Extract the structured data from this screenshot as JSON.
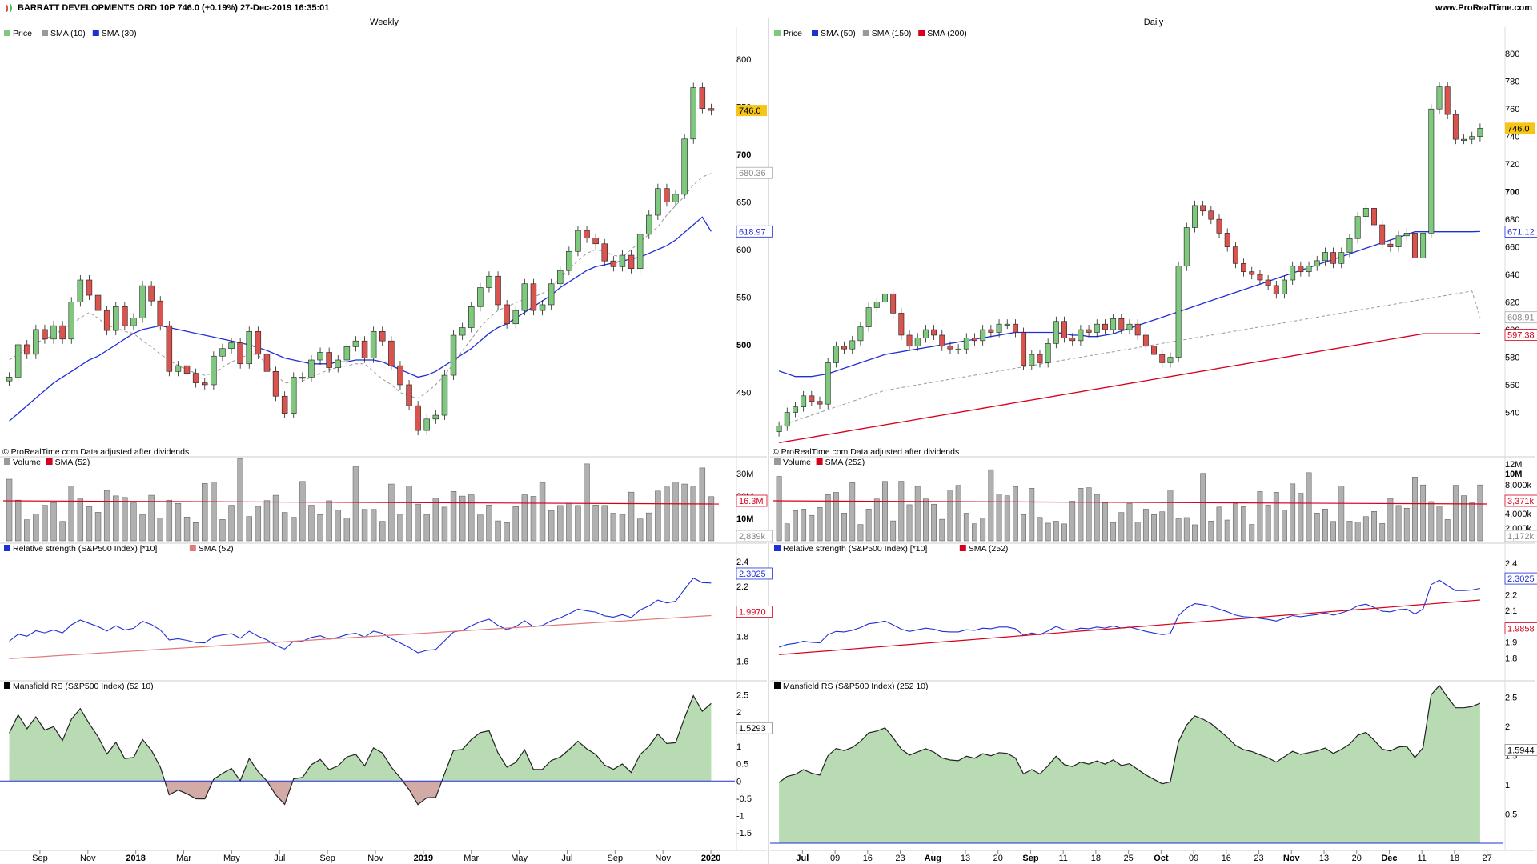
{
  "header": {
    "title": "BARRATT DEVELOPMENTS ORD 10P 746.0 (+0.19%) 27-Dec-2019 16:35:01",
    "site": "www.ProRealTime.com"
  },
  "colors": {
    "up": "#7fc97f",
    "down": "#d9534f",
    "sma_fast": "#999999",
    "sma_blue": "#1f2fd6",
    "sma_red": "#d6001c",
    "mansfield_pos": "#b8dbb4",
    "mansfield_neg": "#d2aaa6",
    "last": "#f5c518"
  },
  "panels": [
    {
      "timeframe": "Weekly",
      "price_legend": [
        "Price",
        "SMA (10)",
        "SMA (30)"
      ],
      "credit": "© ProRealTime.com  Data adjusted after dividends",
      "price_ticks": [
        "800",
        "750",
        "700",
        "650",
        "600",
        "550",
        "500",
        "450"
      ],
      "price_min": 400,
      "price_max": 820,
      "last_price": "746.0",
      "sma_fast_label": "680.36",
      "sma_slow_label": "618.97",
      "volume_legend": [
        "Volume",
        "SMA (52)"
      ],
      "volume_ticks": [
        "30M",
        "20M",
        "10M"
      ],
      "volume_labels": [
        "16.3M",
        "2,839k"
      ],
      "rs_legend": [
        "Relative strength (S&P500 Index) [*10]",
        "SMA (52)"
      ],
      "rs_ticks": [
        "2.4",
        "2.2",
        "2",
        "1.8",
        "1.6"
      ],
      "rs_labels": [
        "2.3025",
        "1.9970"
      ],
      "mansfield_legend": [
        "Mansfield RS (S&P500 Index) (52 10)"
      ],
      "mansfield_ticks": [
        "2.5",
        "2",
        "1.5",
        "1",
        "0.5",
        "0",
        "-0.5",
        "-1",
        "-1.5"
      ],
      "mansfield_label": "1.5293",
      "x_labels": [
        "Sep",
        "Nov",
        "2018",
        "Mar",
        "May",
        "Jul",
        "Sep",
        "Nov",
        "2019",
        "Mar",
        "May",
        "Jul",
        "Sep",
        "Nov",
        "2020"
      ]
    },
    {
      "timeframe": "Daily",
      "price_legend": [
        "Price",
        "SMA (50)",
        "SMA (150)",
        "SMA (200)"
      ],
      "credit": "© ProRealTime.com  Data adjusted after dividends",
      "price_ticks": [
        "800",
        "780",
        "760",
        "740",
        "720",
        "700",
        "680",
        "660",
        "640",
        "620",
        "600",
        "580",
        "560",
        "540"
      ],
      "price_min": 520,
      "price_max": 810,
      "last_price": "746.0",
      "sma50_label": "671.12",
      "sma150_label": "608.91",
      "sma200_label": "597.38",
      "volume_legend": [
        "Volume",
        "SMA (252)"
      ],
      "volume_ticks": [
        "12M",
        "10M",
        "8,000k",
        "6,000k",
        "4,000k",
        "2,000k"
      ],
      "volume_labels": [
        "3,371k",
        "1,172k"
      ],
      "rs_legend": [
        "Relative strength (S&P500 Index) [*10]",
        "SMA (252)"
      ],
      "rs_ticks": [
        "2.4",
        "2.3",
        "2.2",
        "2.1",
        "2",
        "1.9",
        "1.8"
      ],
      "rs_labels": [
        "2.3025",
        "1.9858"
      ],
      "mansfield_legend": [
        "Mansfield RS (S&P500 Index) (252 10)"
      ],
      "mansfield_ticks": [
        "2.5",
        "2",
        "1.5",
        "1",
        "0.5"
      ],
      "mansfield_label": "1.5944",
      "x_labels": [
        "Jul",
        "09",
        "16",
        "23",
        "Aug",
        "13",
        "20",
        "Sep",
        "11",
        "18",
        "25",
        "Oct",
        "09",
        "16",
        "23",
        "Nov",
        "13",
        "20",
        "Dec",
        "11",
        "18",
        "27"
      ]
    }
  ],
  "chart_data": [
    {
      "type": "candlestick",
      "title": "Weekly",
      "series": [
        {
          "name": "Price",
          "values": [
            466,
            500,
            490,
            516,
            506,
            520,
            506,
            545,
            568,
            552,
            536,
            515,
            540,
            520,
            528,
            562,
            546,
            520,
            472,
            478,
            470,
            460,
            458,
            488,
            496,
            502,
            480,
            514,
            490,
            472,
            446,
            428,
            466,
            466,
            484,
            492,
            476,
            484,
            498,
            504,
            486,
            514,
            504,
            478,
            458,
            436,
            410,
            422,
            426,
            468,
            510,
            518,
            540,
            560,
            572,
            542,
            522,
            536,
            564,
            536,
            542,
            564,
            578,
            598,
            620,
            612,
            606,
            588,
            582,
            594,
            580,
            616,
            636,
            664,
            650,
            658,
            716,
            770,
            748,
            746
          ]
        },
        {
          "name": "SMA (10)",
          "values": [
            484,
            490,
            496,
            502,
            506,
            510,
            516,
            522,
            528,
            534,
            528,
            520,
            518,
            514,
            512,
            504,
            498,
            490,
            484,
            478,
            474,
            470,
            468,
            470,
            476,
            482,
            486,
            490,
            490,
            478,
            468,
            460,
            460,
            462,
            466,
            470,
            474,
            476,
            478,
            480,
            480,
            472,
            464,
            458,
            450,
            446,
            444,
            450,
            458,
            468,
            480,
            494,
            506,
            518,
            528,
            536,
            540,
            544,
            548,
            550,
            554,
            560,
            570,
            580,
            588,
            596,
            600,
            598,
            594,
            592,
            600,
            608,
            616,
            624,
            636,
            646,
            656,
            668,
            676,
            680
          ]
        },
        {
          "name": "SMA (30)",
          "values": [
            420,
            428,
            436,
            444,
            452,
            460,
            466,
            472,
            478,
            484,
            488,
            494,
            500,
            506,
            512,
            516,
            518,
            520,
            518,
            516,
            514,
            512,
            510,
            508,
            506,
            504,
            502,
            500,
            497,
            494,
            490,
            486,
            484,
            482,
            480,
            480,
            480,
            482,
            482,
            484,
            484,
            484,
            482,
            478,
            474,
            470,
            466,
            468,
            472,
            478,
            484,
            490,
            496,
            504,
            512,
            518,
            522,
            528,
            534,
            540,
            546,
            552,
            560,
            566,
            572,
            578,
            582,
            584,
            586,
            588,
            590,
            592,
            596,
            600,
            604,
            610,
            618,
            626,
            634,
            619
          ]
        }
      ],
      "ylim": [
        400,
        820
      ]
    },
    {
      "type": "candlestick",
      "title": "Daily",
      "series": [
        {
          "name": "Price",
          "values": [
            530,
            540,
            544,
            552,
            548,
            546,
            576,
            588,
            586,
            592,
            602,
            616,
            620,
            626,
            612,
            596,
            588,
            594,
            600,
            596,
            588,
            586,
            586,
            594,
            592,
            600,
            598,
            604,
            604,
            598,
            574,
            582,
            576,
            590,
            606,
            594,
            592,
            600,
            598,
            604,
            600,
            608,
            600,
            604,
            596,
            588,
            582,
            576,
            580,
            646,
            674,
            690,
            686,
            680,
            670,
            660,
            648,
            642,
            640,
            636,
            632,
            626,
            636,
            646,
            642,
            646,
            650,
            656,
            648,
            656,
            666,
            682,
            688,
            676,
            662,
            660,
            668,
            670,
            652,
            670,
            760,
            776,
            756,
            738,
            738,
            740,
            746
          ]
        },
        {
          "name": "SMA (50)",
          "values": [
            570,
            568,
            566,
            566,
            566,
            567,
            568,
            570,
            572,
            574,
            576,
            578,
            580,
            582,
            583,
            584,
            585,
            586,
            587,
            588,
            589,
            590,
            591,
            592,
            593,
            594,
            595,
            596,
            597,
            598,
            598,
            598,
            598,
            598,
            598,
            597,
            596,
            596,
            595,
            595,
            596,
            597,
            599,
            601,
            603,
            605,
            607,
            609,
            611,
            613,
            615,
            617,
            619,
            621,
            623,
            625,
            627,
            629,
            631,
            633,
            635,
            637,
            639,
            641,
            643,
            645,
            647,
            649,
            651,
            653,
            655,
            657,
            659,
            661,
            663,
            665,
            667,
            669,
            671,
            671,
            671,
            671,
            671,
            671,
            671,
            671,
            671.12
          ]
        },
        {
          "name": "SMA (150)",
          "values": [
            530,
            532,
            534,
            536,
            538,
            540,
            542,
            544,
            546,
            548,
            550,
            552,
            554,
            556,
            557,
            558,
            559,
            560,
            561,
            562,
            563,
            564,
            565,
            566,
            567,
            568,
            569,
            570,
            571,
            572,
            573,
            574,
            575,
            576,
            577,
            578,
            579,
            580,
            581,
            582,
            583,
            584,
            585,
            586,
            587,
            588,
            589,
            590,
            591,
            592,
            593,
            594,
            595,
            596,
            597,
            598,
            599,
            600,
            601,
            602,
            603,
            604,
            605,
            606,
            607,
            608,
            609,
            610,
            611,
            612,
            613,
            614,
            615,
            616,
            617,
            618,
            619,
            620,
            621,
            622,
            623,
            624,
            625,
            626,
            627,
            628,
            608.91
          ]
        },
        {
          "name": "SMA (200)",
          "values": [
            518,
            519,
            520,
            521,
            522,
            523,
            524,
            525,
            526,
            527,
            528,
            529,
            530,
            531,
            532,
            533,
            534,
            535,
            536,
            537,
            538,
            539,
            540,
            541,
            542,
            543,
            544,
            545,
            546,
            547,
            548,
            549,
            550,
            551,
            552,
            553,
            554,
            555,
            556,
            557,
            558,
            559,
            560,
            561,
            562,
            563,
            564,
            565,
            566,
            567,
            568,
            569,
            570,
            571,
            572,
            573,
            574,
            575,
            576,
            577,
            578,
            579,
            580,
            581,
            582,
            583,
            584,
            585,
            586,
            587,
            588,
            589,
            590,
            591,
            592,
            593,
            594,
            595,
            596,
            597,
            597,
            597,
            597,
            597,
            597,
            597,
            597.38
          ]
        }
      ],
      "ylim": [
        520,
        810
      ]
    }
  ]
}
